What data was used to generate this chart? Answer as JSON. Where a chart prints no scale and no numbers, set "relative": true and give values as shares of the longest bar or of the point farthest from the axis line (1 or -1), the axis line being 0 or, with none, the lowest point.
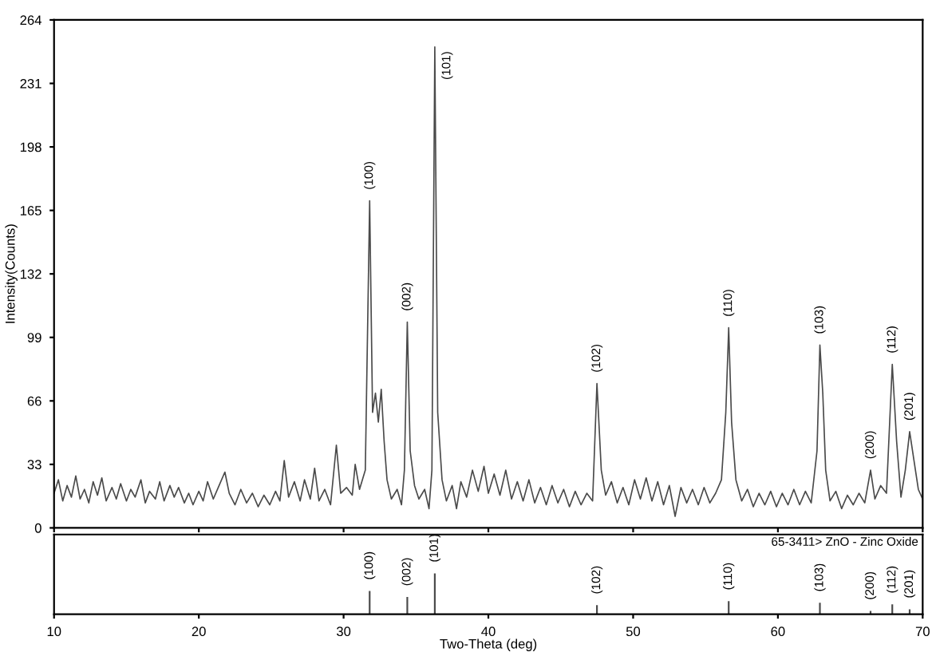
{
  "chart_data": [
    {
      "type": "line",
      "ylabel": "Intensity(Counts)",
      "xlim": [
        10,
        70
      ],
      "ylim": [
        0,
        264
      ],
      "yticks": [
        0,
        33,
        66,
        99,
        132,
        165,
        198,
        231,
        264
      ],
      "xticks": [
        10,
        20,
        30,
        40,
        50,
        60,
        70
      ],
      "tick_labels": "y",
      "grid": false,
      "series": [
        {
          "color": "#4a4a4a",
          "x": [
            10.0,
            10.3,
            10.6,
            10.9,
            11.2,
            11.5,
            11.8,
            12.1,
            12.4,
            12.7,
            13.0,
            13.3,
            13.6,
            14.0,
            14.3,
            14.6,
            15.0,
            15.3,
            15.6,
            16.0,
            16.3,
            16.6,
            17.0,
            17.3,
            17.6,
            18.0,
            18.3,
            18.6,
            19.0,
            19.3,
            19.6,
            20.0,
            20.3,
            20.6,
            21.0,
            21.4,
            21.8,
            22.1,
            22.5,
            22.9,
            23.3,
            23.7,
            24.1,
            24.5,
            24.9,
            25.3,
            25.6,
            25.9,
            26.2,
            26.6,
            27.0,
            27.3,
            27.7,
            28.0,
            28.3,
            28.7,
            29.1,
            29.5,
            29.8,
            30.2,
            30.6,
            30.8,
            31.1,
            31.5,
            31.8,
            32.0,
            32.2,
            32.4,
            32.6,
            32.8,
            33.0,
            33.3,
            33.7,
            34.0,
            34.2,
            34.4,
            34.6,
            34.9,
            35.2,
            35.6,
            35.9,
            36.1,
            36.3,
            36.5,
            36.8,
            37.1,
            37.5,
            37.8,
            38.1,
            38.5,
            38.9,
            39.3,
            39.7,
            40.0,
            40.4,
            40.8,
            41.2,
            41.6,
            42.0,
            42.4,
            42.8,
            43.2,
            43.6,
            44.0,
            44.4,
            44.8,
            45.2,
            45.6,
            46.0,
            46.4,
            46.8,
            47.2,
            47.5,
            47.8,
            48.1,
            48.5,
            48.9,
            49.3,
            49.7,
            50.1,
            50.5,
            50.9,
            51.3,
            51.7,
            52.1,
            52.5,
            52.9,
            53.3,
            53.7,
            54.1,
            54.5,
            54.9,
            55.3,
            55.7,
            56.1,
            56.4,
            56.6,
            56.8,
            57.1,
            57.5,
            57.9,
            58.3,
            58.7,
            59.1,
            59.5,
            59.9,
            60.3,
            60.7,
            61.1,
            61.5,
            61.9,
            62.3,
            62.7,
            62.9,
            63.1,
            63.3,
            63.6,
            64.0,
            64.4,
            64.8,
            65.2,
            65.6,
            66.0,
            66.4,
            66.7,
            67.1,
            67.5,
            67.9,
            68.2,
            68.5,
            68.8,
            69.1,
            69.4,
            69.7,
            70.0
          ],
          "values": [
            18,
            25,
            14,
            22,
            16,
            27,
            15,
            20,
            13,
            24,
            17,
            26,
            14,
            21,
            15,
            23,
            14,
            20,
            16,
            25,
            13,
            19,
            15,
            24,
            14,
            22,
            16,
            21,
            13,
            18,
            12,
            19,
            14,
            24,
            15,
            22,
            29,
            18,
            12,
            20,
            13,
            18,
            11,
            17,
            12,
            19,
            14,
            35,
            16,
            24,
            14,
            25,
            15,
            31,
            14,
            20,
            12,
            43,
            18,
            21,
            17,
            33,
            20,
            30,
            170,
            60,
            70,
            55,
            72,
            45,
            25,
            15,
            20,
            12,
            30,
            107,
            40,
            22,
            15,
            20,
            10,
            30,
            250,
            60,
            25,
            14,
            22,
            10,
            24,
            16,
            30,
            19,
            32,
            18,
            28,
            17,
            30,
            15,
            24,
            14,
            25,
            13,
            21,
            12,
            22,
            13,
            20,
            11,
            19,
            12,
            18,
            14,
            75,
            30,
            17,
            24,
            13,
            21,
            12,
            25,
            15,
            26,
            14,
            24,
            12,
            22,
            6,
            21,
            13,
            20,
            12,
            21,
            13,
            18,
            25,
            60,
            104,
            55,
            25,
            14,
            20,
            11,
            18,
            12,
            19,
            11,
            18,
            12,
            20,
            12,
            19,
            13,
            40,
            95,
            70,
            30,
            14,
            19,
            10,
            17,
            12,
            18,
            13,
            30,
            15,
            22,
            18,
            85,
            45,
            16,
            30,
            50,
            35,
            20,
            15
          ]
        }
      ],
      "annotations": [
        {
          "text": "(100)",
          "x": 31.8,
          "y": 170
        },
        {
          "text": "(002)",
          "x": 34.4,
          "y": 107
        },
        {
          "text": "(101)",
          "x": 36.3,
          "y": 250
        },
        {
          "text": "(102)",
          "x": 47.5,
          "y": 75
        },
        {
          "text": "(110)",
          "x": 56.6,
          "y": 104
        },
        {
          "text": "(103)",
          "x": 62.9,
          "y": 95
        },
        {
          "text": "(200)",
          "x": 66.4,
          "y": 30
        },
        {
          "text": "(112)",
          "x": 67.9,
          "y": 85
        },
        {
          "text": "(201)",
          "x": 69.1,
          "y": 50
        }
      ]
    },
    {
      "type": "bar",
      "relative": true,
      "xlabel": "Two-Theta (deg)",
      "xlim": [
        10,
        70
      ],
      "xticks": [
        10,
        20,
        30,
        40,
        50,
        60,
        70
      ],
      "tick_labels": "x",
      "grid": false,
      "x": [
        31.8,
        34.4,
        36.3,
        47.5,
        56.6,
        62.9,
        66.4,
        67.9,
        69.1
      ],
      "series": [
        {
          "color": "#4a4a4a",
          "values": [
            0.57,
            0.42,
            1,
            0.22,
            0.32,
            0.28,
            0.08,
            0.24,
            0.12
          ]
        }
      ],
      "annotations": [
        "65-3411> ZnO - Zinc Oxide",
        {
          "text": "(100)",
          "x": 31.8,
          "y": 0.57
        },
        {
          "text": "(002)",
          "x": 34.4,
          "y": 0.42
        },
        {
          "text": "(101)",
          "x": 36.3,
          "y": 1
        },
        {
          "text": "(102)",
          "x": 47.5,
          "y": 0.22
        },
        {
          "text": "(110)",
          "x": 56.6,
          "y": 0.32
        },
        {
          "text": "(103)",
          "x": 62.9,
          "y": 0.28
        },
        {
          "text": "(200)",
          "x": 66.4,
          "y": 0.08
        },
        {
          "text": "(112)",
          "x": 67.9,
          "y": 0.24
        },
        {
          "text": "(201)",
          "x": 69.1,
          "y": 0.12
        }
      ]
    }
  ]
}
